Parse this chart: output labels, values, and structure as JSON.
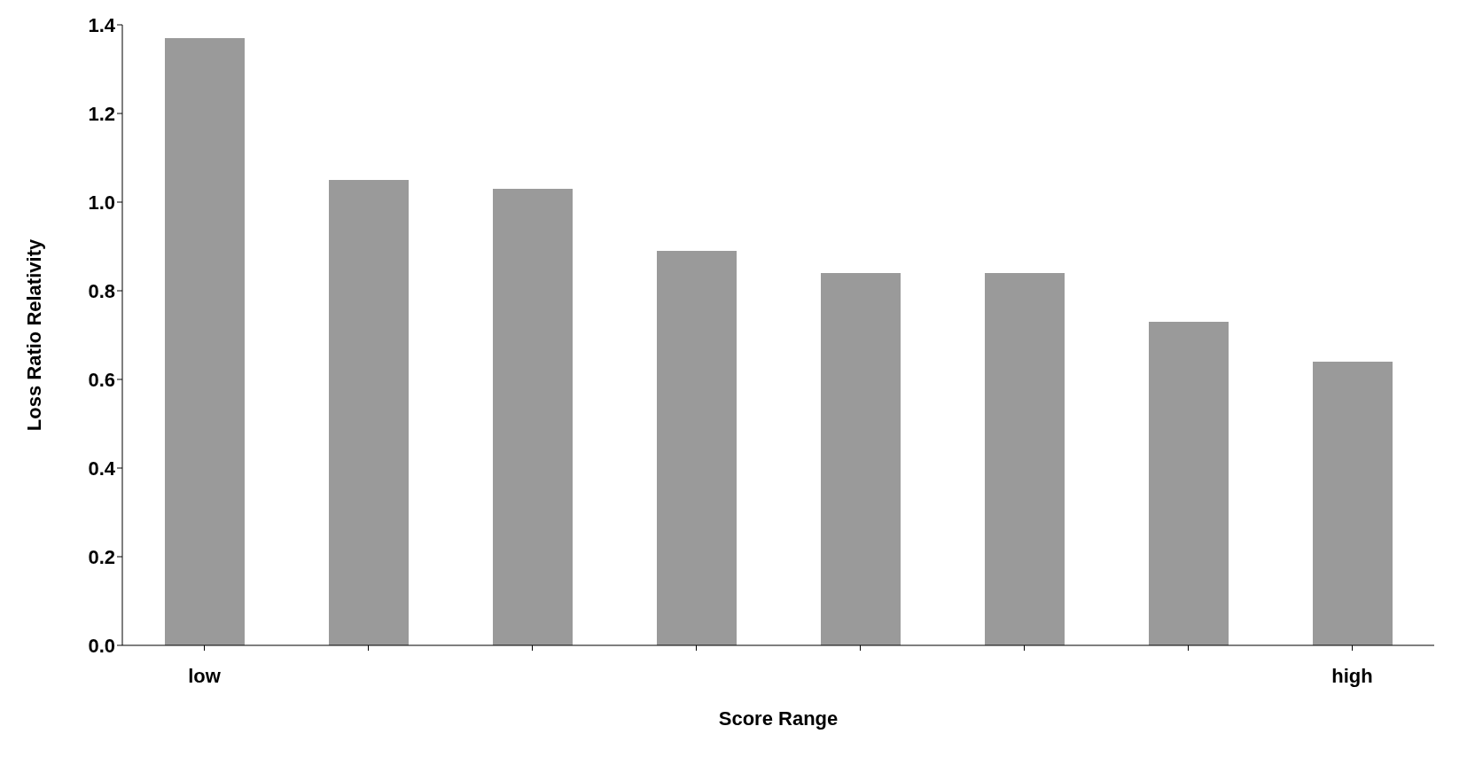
{
  "chart_data": {
    "type": "bar",
    "xlabel": "Score Range",
    "ylabel": "Loss Ratio Relativity",
    "categories": [
      "low",
      null,
      null,
      null,
      null,
      null,
      null,
      "high"
    ],
    "values": [
      1.37,
      1.05,
      1.03,
      0.89,
      0.84,
      0.84,
      0.73,
      0.64
    ],
    "color": "#9a9a9a",
    "ylim": [
      0,
      1.4
    ],
    "yticks": [
      {
        "value": 0,
        "label": "0.0"
      },
      {
        "value": 0.2,
        "label": "0.2"
      },
      {
        "value": 0.4,
        "label": "0.4"
      },
      {
        "value": 0.6,
        "label": "0.6"
      },
      {
        "value": 0.8,
        "label": "0.8"
      },
      {
        "value": 1,
        "label": "1.0"
      },
      {
        "value": 1.2,
        "label": "1.2"
      },
      {
        "value": 1.4,
        "label": "1.4"
      }
    ],
    "grid": false,
    "legend": false
  }
}
